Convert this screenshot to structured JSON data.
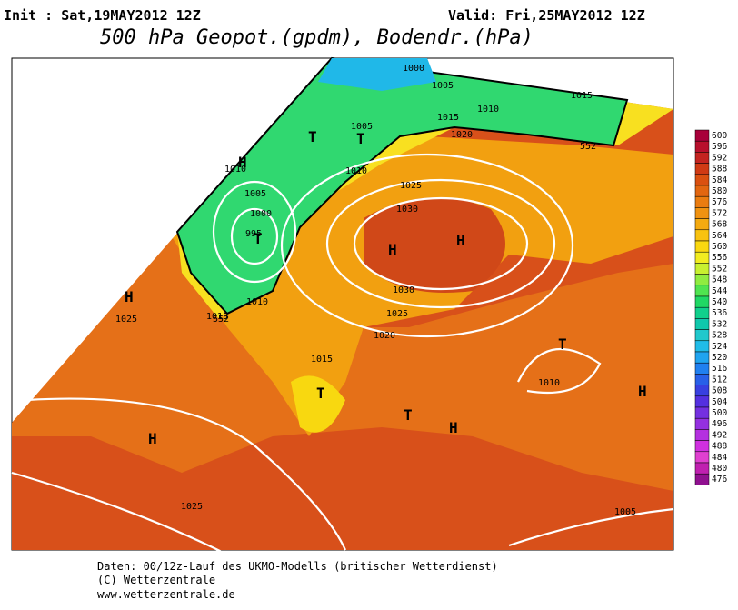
{
  "header": {
    "init": "Init : Sat,19MAY2012 12Z",
    "valid": "Valid: Fri,25MAY2012 12Z",
    "title": "500 hPa Geopot.(gpdm), Bodendr.(hPa)"
  },
  "map": {
    "labels": [
      "1000",
      "1005",
      "1015",
      "1010",
      "1015",
      "1020",
      "1005",
      "1010",
      "1010",
      "1005",
      "1000",
      "995",
      "1025",
      "1030",
      "1030",
      "1025",
      "1020",
      "1015",
      "1015",
      "1010",
      "1025",
      "1010",
      "1025",
      "1005",
      "552",
      "552",
      "T",
      "T",
      "H",
      "T",
      "H",
      "H",
      "H",
      "T",
      "T",
      "T",
      "H",
      "H",
      "H"
    ]
  },
  "colorbar": {
    "labels": [
      600,
      596,
      592,
      588,
      584,
      580,
      576,
      572,
      568,
      564,
      560,
      556,
      552,
      548,
      544,
      540,
      536,
      532,
      528,
      524,
      520,
      516,
      512,
      508,
      504,
      500,
      496,
      492,
      488,
      484,
      480,
      476
    ],
    "colors": [
      "#a8003a",
      "#b8102c",
      "#c42420",
      "#d03a14",
      "#da5010",
      "#e26610",
      "#ea7c10",
      "#f09210",
      "#f4aa10",
      "#f8c210",
      "#fad810",
      "#f2ec20",
      "#c8f030",
      "#90ec40",
      "#50e450",
      "#20d864",
      "#10d08c",
      "#10c8ac",
      "#20c8cc",
      "#20bce8",
      "#20a4f0",
      "#2080f0",
      "#2860e8",
      "#3840e0",
      "#5430e0",
      "#7430e0",
      "#9430e0",
      "#b430e0",
      "#d030e0",
      "#e040d0",
      "#c020b0",
      "#901090"
    ]
  },
  "footer": {
    "lines": [
      "Daten: 00/12z-Lauf des UKMO-Modells (britischer Wetterdienst)",
      "(C) Wetterzentrale",
      "www.wetterzentrale.de"
    ]
  }
}
